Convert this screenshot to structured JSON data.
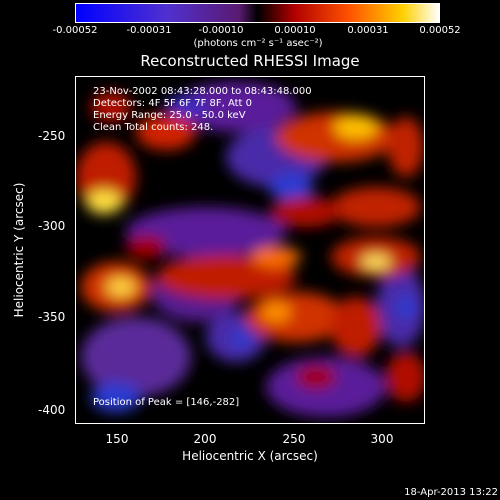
{
  "colorbar": {
    "ticks": [
      "-0.00052",
      "-0.00031",
      "-0.00010",
      "0.00010",
      "0.00031",
      "0.00052"
    ],
    "units": "(photons cm⁻² s⁻¹ asec⁻²)"
  },
  "title": "Reconstructed RHESSI Image",
  "info": {
    "line1": "23-Nov-2002 08:43:28.000 to 08:43:48.000",
    "line2": "Detectors: 4F 5F 6F 7F 8F, Att 0",
    "line3": "Energy Range: 25.0 - 50.0 keV",
    "line4": "Clean    Total counts: 248.",
    "peak": "Position of Peak = [146,-282]"
  },
  "axes": {
    "xlabel": "Heliocentric X (arcsec)",
    "ylabel": "Heliocentric Y (arcsec)",
    "xticks": [
      "150",
      "200",
      "250",
      "300"
    ],
    "yticks": [
      "-250",
      "-300",
      "-350",
      "-400"
    ]
  },
  "timestamp": "18-Apr-2013 13:22",
  "colors": {
    "background": "#000000",
    "text": "#ffffff"
  }
}
